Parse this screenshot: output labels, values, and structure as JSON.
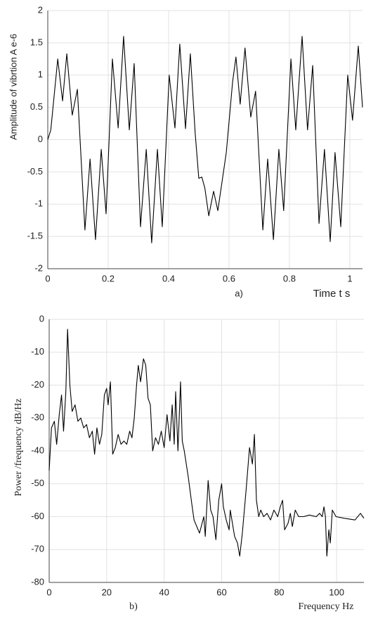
{
  "chart_data": [
    {
      "type": "line",
      "ylabel": "Amplitude of vibrtion A e-6",
      "xlabel": "Time   t s",
      "panel_label": "a)",
      "xlim": [
        0,
        1.042
      ],
      "ylim": [
        -2,
        2
      ],
      "xticks": [
        0,
        0.2,
        0.4,
        0.6,
        0.8,
        1
      ],
      "yticks": [
        -2,
        -1.5,
        -1,
        -0.5,
        0,
        0.5,
        1,
        1.5,
        2
      ],
      "grid": true,
      "series": [
        {
          "color": "#000000",
          "x": [
            0,
            0.01,
            0.033,
            0.049,
            0.063,
            0.081,
            0.098,
            0.123,
            0.14,
            0.158,
            0.177,
            0.193,
            0.214,
            0.233,
            0.251,
            0.27,
            0.286,
            0.307,
            0.326,
            0.344,
            0.363,
            0.379,
            0.402,
            0.421,
            0.437,
            0.456,
            0.472,
            0.488,
            0.5,
            0.51,
            0.52,
            0.533,
            0.549,
            0.563,
            0.591,
            0.612,
            0.623,
            0.637,
            0.653,
            0.672,
            0.688,
            0.712,
            0.728,
            0.747,
            0.765,
            0.781,
            0.805,
            0.821,
            0.842,
            0.86,
            0.877,
            0.898,
            0.916,
            0.935,
            0.951,
            0.97,
            0.993,
            1.009,
            1.028,
            1.042
          ],
          "values": [
            0,
            0.15,
            1.25,
            0.6,
            1.33,
            0.38,
            0.78,
            -1.4,
            -0.3,
            -1.55,
            -0.15,
            -1.15,
            1.25,
            0.18,
            1.6,
            0.15,
            1.18,
            -1.35,
            -0.15,
            -1.6,
            -0.15,
            -1.35,
            1.0,
            0.18,
            1.48,
            0.17,
            1.33,
            0.1,
            -0.6,
            -0.58,
            -0.75,
            -1.18,
            -0.8,
            -1.1,
            -0.2,
            0.9,
            1.28,
            0.55,
            1.42,
            0.35,
            0.75,
            -1.4,
            -0.3,
            -1.55,
            -0.15,
            -1.1,
            1.25,
            0.15,
            1.6,
            0.15,
            1.15,
            -1.3,
            -0.15,
            -1.58,
            -0.2,
            -1.35,
            1.0,
            0.3,
            1.45,
            0.5
          ]
        }
      ]
    },
    {
      "type": "line",
      "ylabel": "Power /frequency dB/Hz",
      "xlabel": "Frequency Hz",
      "panel_label": "b)",
      "xlim": [
        0,
        109.5
      ],
      "ylim": [
        -80,
        0
      ],
      "xticks": [
        0,
        20,
        40,
        60,
        80,
        100
      ],
      "yticks": [
        -80,
        -70,
        -60,
        -50,
        -40,
        -30,
        -20,
        -10,
        0
      ],
      "grid": true,
      "series": [
        {
          "color": "#000000",
          "x": [
            0,
            0.8,
            1.8,
            2.6,
            3.5,
            4.3,
            5.0,
            5.8,
            6.4,
            7.2,
            8.0,
            9.0,
            10.0,
            11.0,
            12.0,
            13.0,
            14.0,
            15.0,
            15.8,
            16.6,
            17.5,
            18.3,
            19.2,
            20.0,
            20.5,
            21.3,
            22.1,
            23.0,
            24.0,
            25.0,
            26.0,
            27.0,
            28.0,
            28.8,
            29.6,
            30.4,
            31.0,
            31.8,
            32.8,
            33.6,
            34.4,
            35.2,
            36.0,
            37.0,
            38.0,
            39.0,
            40.0,
            41.0,
            42.0,
            42.8,
            43.5,
            44.0,
            44.8,
            45.7,
            46.3,
            47.0,
            48.4,
            49.6,
            50.4,
            52.3,
            53.8,
            54.3,
            55.3,
            56.2,
            57.0,
            58.0,
            59.0,
            60.0,
            60.6,
            61.6,
            62.6,
            63.0,
            64.5,
            65.5,
            66.3,
            67.2,
            68.5,
            69.7,
            70.7,
            71.4,
            72.1,
            72.9,
            73.6,
            74.6,
            75.8,
            77.0,
            78.2,
            79.5,
            80.4,
            81.2,
            81.9,
            83.1,
            83.9,
            84.6,
            85.6,
            86.8,
            88.5,
            90.5,
            92.9,
            94.1,
            95.0,
            95.6,
            96.1,
            96.6,
            97.3,
            97.8,
            98.5,
            99.8,
            102.7,
            106.4,
            108.3,
            109.5
          ],
          "values": [
            -46,
            -33,
            -31,
            -38,
            -29,
            -23,
            -34,
            -22,
            -3,
            -20,
            -28,
            -26,
            -31,
            -30,
            -33,
            -32,
            -36,
            -34,
            -41,
            -33,
            -38,
            -35,
            -23,
            -21,
            -26,
            -19,
            -41,
            -39,
            -35,
            -38,
            -37,
            -38,
            -34,
            -36,
            -30,
            -20,
            -14,
            -19,
            -12,
            -14,
            -24,
            -26,
            -40,
            -36,
            -38,
            -34,
            -39,
            -29,
            -37,
            -26,
            -38,
            -22,
            -40,
            -19,
            -37,
            -40,
            -48,
            -56,
            -61,
            -65,
            -60,
            -66,
            -49,
            -58,
            -60,
            -67,
            -55,
            -50,
            -57,
            -61,
            -64,
            -58,
            -66,
            -68,
            -72,
            -65,
            -52,
            -39,
            -44,
            -35,
            -55,
            -60,
            -58,
            -60,
            -59,
            -61,
            -58,
            -60,
            -57,
            -55,
            -64,
            -62,
            -59,
            -63,
            -58,
            -60,
            -60,
            -59.5,
            -60,
            -59,
            -60,
            -57,
            -60,
            -72,
            -64,
            -68,
            -58,
            -60,
            -60.5,
            -61,
            -59,
            -60.5
          ]
        }
      ]
    }
  ]
}
